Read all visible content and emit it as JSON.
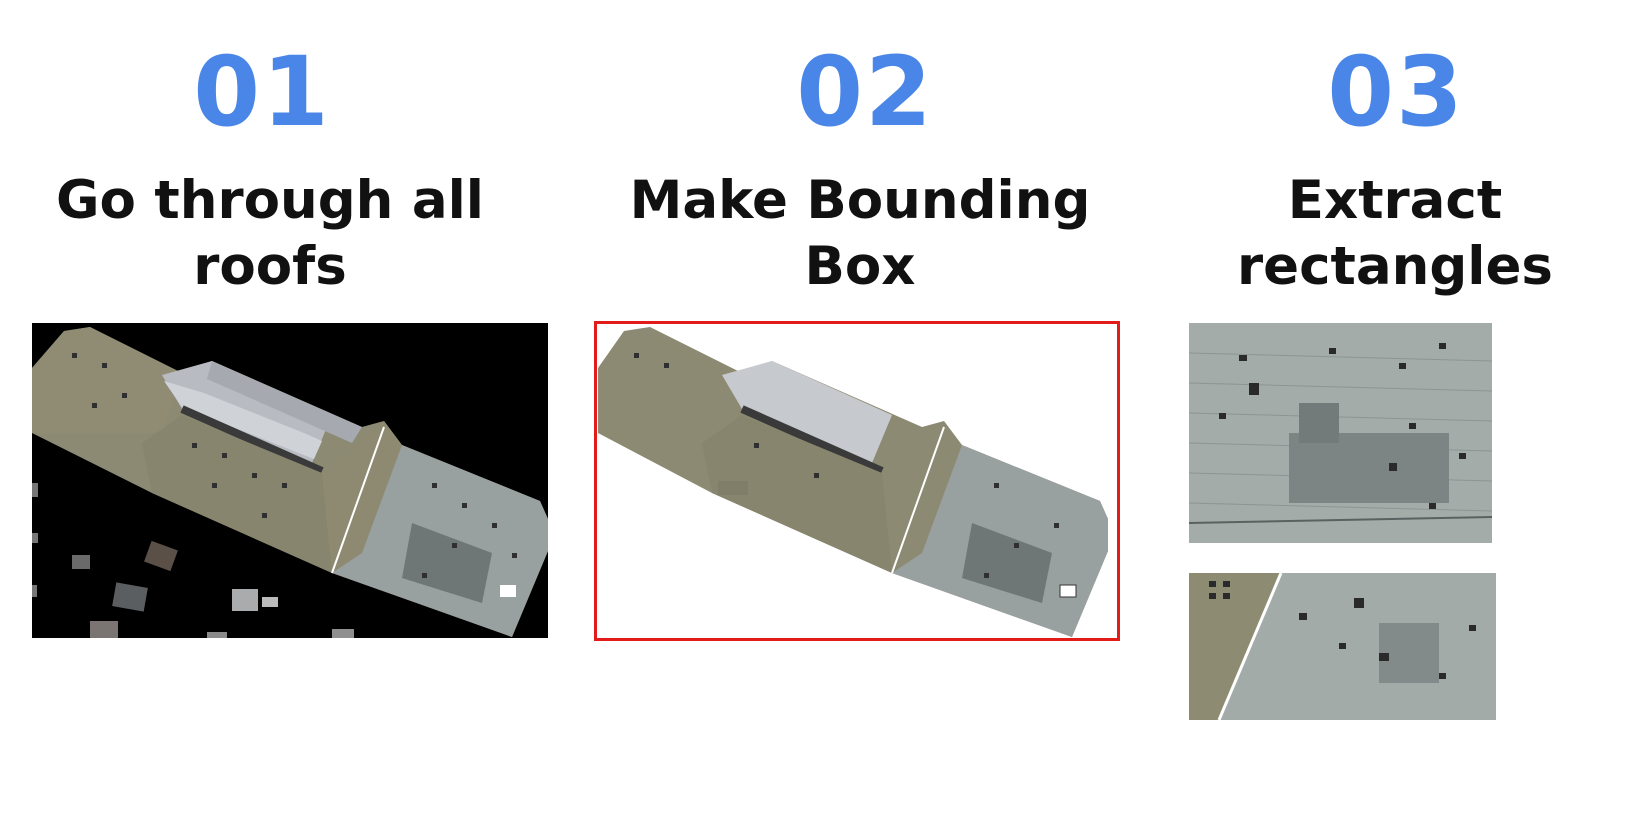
{
  "steps": [
    {
      "number": "01",
      "title_line1": "Go through all",
      "title_line2": "roofs"
    },
    {
      "number": "02",
      "title_line1": "Make Bounding",
      "title_line2": "Box"
    },
    {
      "number": "03",
      "title_line1": "Extract",
      "title_line2": "rectangles"
    }
  ],
  "colors": {
    "number_accent": "#4a86e8",
    "bounding_box": "#e31b1b",
    "background": "#ffffff"
  }
}
